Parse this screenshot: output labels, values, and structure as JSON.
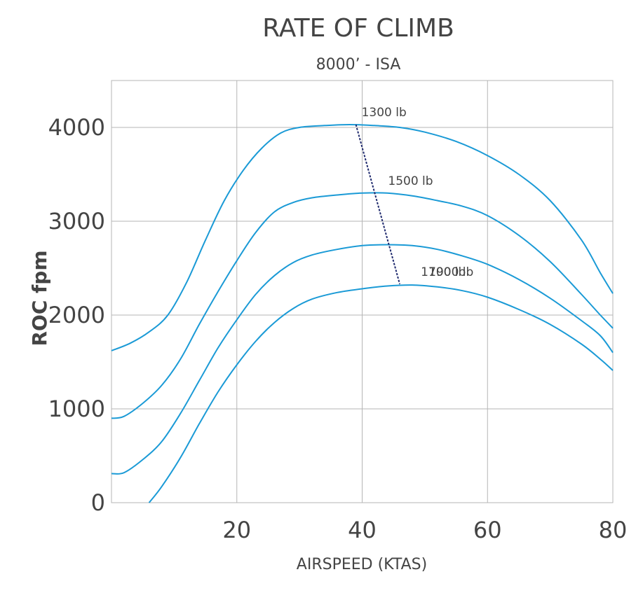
{
  "chart_data": {
    "type": "line",
    "title": "RATE OF CLIMB",
    "subtitle": "8000’ - ISA",
    "xlabel": "AIRSPEED (KTAS)",
    "ylabel": "ROC fpm",
    "xlim": [
      0,
      80
    ],
    "ylim": [
      0,
      4500
    ],
    "x_ticks": [
      20,
      40,
      60,
      80
    ],
    "y_ticks": [
      0,
      1000,
      2000,
      3000,
      4000
    ],
    "grid": true,
    "colors": {
      "curve": "#1a9ad6",
      "best_rate_line": "#1f2a6e"
    },
    "series": [
      {
        "name": "1300 lb",
        "points": [
          [
            0,
            1620
          ],
          [
            3,
            1700
          ],
          [
            6,
            1820
          ],
          [
            9,
            2000
          ],
          [
            12,
            2350
          ],
          [
            15,
            2800
          ],
          [
            18,
            3220
          ],
          [
            21,
            3540
          ],
          [
            24,
            3780
          ],
          [
            27,
            3940
          ],
          [
            30,
            4000
          ],
          [
            34,
            4020
          ],
          [
            38,
            4030
          ],
          [
            42,
            4020
          ],
          [
            46,
            4000
          ],
          [
            50,
            3950
          ],
          [
            55,
            3850
          ],
          [
            60,
            3700
          ],
          [
            65,
            3500
          ],
          [
            70,
            3220
          ],
          [
            75,
            2800
          ],
          [
            78,
            2450
          ],
          [
            80,
            2230
          ]
        ]
      },
      {
        "name": "1500 lb",
        "points": [
          [
            0,
            900
          ],
          [
            2,
            920
          ],
          [
            5,
            1060
          ],
          [
            8,
            1250
          ],
          [
            11,
            1530
          ],
          [
            14,
            1900
          ],
          [
            17,
            2250
          ],
          [
            20,
            2580
          ],
          [
            23,
            2880
          ],
          [
            26,
            3100
          ],
          [
            29,
            3200
          ],
          [
            32,
            3250
          ],
          [
            36,
            3280
          ],
          [
            40,
            3300
          ],
          [
            44,
            3300
          ],
          [
            48,
            3270
          ],
          [
            52,
            3220
          ],
          [
            56,
            3160
          ],
          [
            60,
            3060
          ],
          [
            65,
            2850
          ],
          [
            70,
            2570
          ],
          [
            75,
            2220
          ],
          [
            78,
            2000
          ],
          [
            80,
            1860
          ]
        ]
      },
      {
        "name": "1700 lb",
        "points": [
          [
            0,
            310
          ],
          [
            2,
            320
          ],
          [
            5,
            460
          ],
          [
            8,
            650
          ],
          [
            11,
            950
          ],
          [
            14,
            1300
          ],
          [
            17,
            1650
          ],
          [
            20,
            1950
          ],
          [
            23,
            2220
          ],
          [
            26,
            2420
          ],
          [
            29,
            2560
          ],
          [
            32,
            2640
          ],
          [
            36,
            2700
          ],
          [
            40,
            2740
          ],
          [
            44,
            2750
          ],
          [
            48,
            2740
          ],
          [
            52,
            2700
          ],
          [
            56,
            2630
          ],
          [
            60,
            2540
          ],
          [
            65,
            2380
          ],
          [
            70,
            2180
          ],
          [
            75,
            1940
          ],
          [
            78,
            1780
          ],
          [
            80,
            1600
          ]
        ]
      },
      {
        "name": "1900 lb",
        "points": [
          [
            6,
            0
          ],
          [
            8,
            170
          ],
          [
            11,
            480
          ],
          [
            14,
            840
          ],
          [
            17,
            1180
          ],
          [
            20,
            1470
          ],
          [
            23,
            1720
          ],
          [
            26,
            1920
          ],
          [
            29,
            2070
          ],
          [
            32,
            2170
          ],
          [
            36,
            2240
          ],
          [
            40,
            2280
          ],
          [
            44,
            2310
          ],
          [
            48,
            2320
          ],
          [
            52,
            2300
          ],
          [
            56,
            2260
          ],
          [
            60,
            2190
          ],
          [
            65,
            2060
          ],
          [
            70,
            1900
          ],
          [
            75,
            1690
          ],
          [
            78,
            1530
          ],
          [
            80,
            1410
          ]
        ]
      }
    ],
    "best_rate_line": {
      "points": [
        [
          39,
          4030
        ],
        [
          42,
          3300
        ],
        [
          46,
          2330
        ]
      ]
    }
  }
}
